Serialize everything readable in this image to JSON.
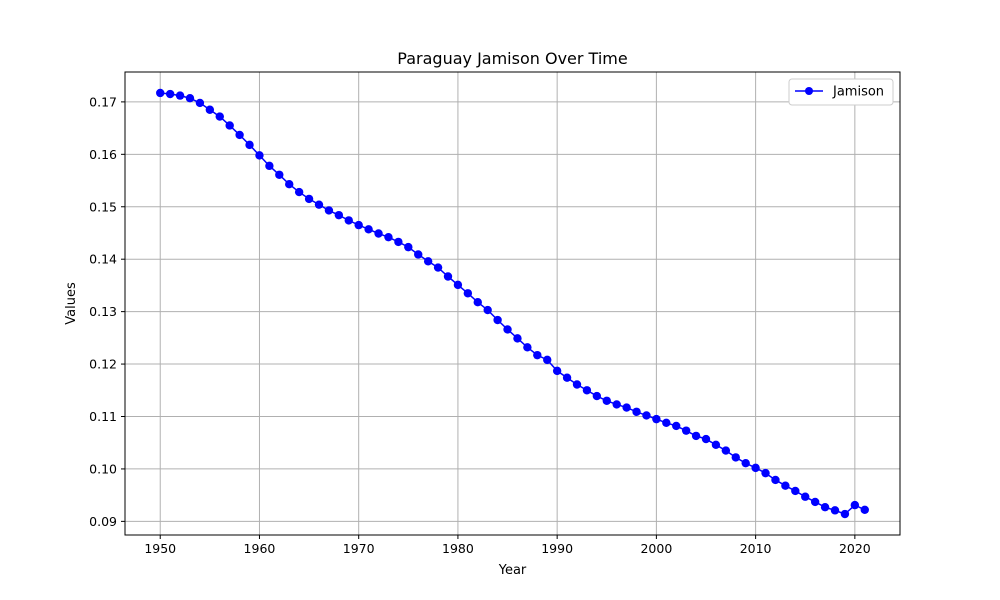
{
  "chart_data": {
    "type": "line",
    "title": "Paraguay Jamison Over Time",
    "xlabel": "Year",
    "ylabel": "Values",
    "xlim": [
      1946.45,
      2024.55
    ],
    "ylim": [
      0.0874,
      0.1757
    ],
    "xticks": [
      1950,
      1960,
      1970,
      1980,
      1990,
      2000,
      2010,
      2020
    ],
    "yticks": [
      0.09,
      0.1,
      0.11,
      0.12,
      0.13,
      0.14,
      0.15,
      0.16,
      0.17
    ],
    "grid": true,
    "legend_position": "top-right",
    "series": [
      {
        "name": "Jamison",
        "color": "#0000ff",
        "marker": "circle",
        "x": [
          1950,
          1951,
          1952,
          1953,
          1954,
          1955,
          1956,
          1957,
          1958,
          1959,
          1960,
          1961,
          1962,
          1963,
          1964,
          1965,
          1966,
          1967,
          1968,
          1969,
          1970,
          1971,
          1972,
          1973,
          1974,
          1975,
          1976,
          1977,
          1978,
          1979,
          1980,
          1981,
          1982,
          1983,
          1984,
          1985,
          1986,
          1987,
          1988,
          1989,
          1990,
          1991,
          1992,
          1993,
          1994,
          1995,
          1996,
          1997,
          1998,
          1999,
          2000,
          2001,
          2002,
          2003,
          2004,
          2005,
          2006,
          2007,
          2008,
          2009,
          2010,
          2011,
          2012,
          2013,
          2014,
          2015,
          2016,
          2017,
          2018,
          2019,
          2020,
          2021
        ],
        "y": [
          0.1717,
          0.1715,
          0.1712,
          0.1707,
          0.1698,
          0.1685,
          0.1672,
          0.1655,
          0.1637,
          0.1618,
          0.1598,
          0.1578,
          0.1561,
          0.1543,
          0.1528,
          0.1515,
          0.1504,
          0.1493,
          0.1484,
          0.1474,
          0.1465,
          0.1457,
          0.1449,
          0.1442,
          0.1433,
          0.1423,
          0.1409,
          0.1396,
          0.1384,
          0.1367,
          0.1351,
          0.1335,
          0.1318,
          0.1303,
          0.1284,
          0.1266,
          0.1249,
          0.1232,
          0.1217,
          0.1208,
          0.1187,
          0.1174,
          0.1161,
          0.115,
          0.1139,
          0.113,
          0.1123,
          0.1117,
          0.1109,
          0.1102,
          0.1095,
          0.1088,
          0.1082,
          0.1073,
          0.1063,
          0.1057,
          0.1046,
          0.1035,
          0.1022,
          0.1011,
          0.1002,
          0.0992,
          0.0979,
          0.0968,
          0.0958,
          0.0947,
          0.0937,
          0.0927,
          0.0921,
          0.0914,
          0.0931,
          0.0922
        ]
      }
    ]
  }
}
